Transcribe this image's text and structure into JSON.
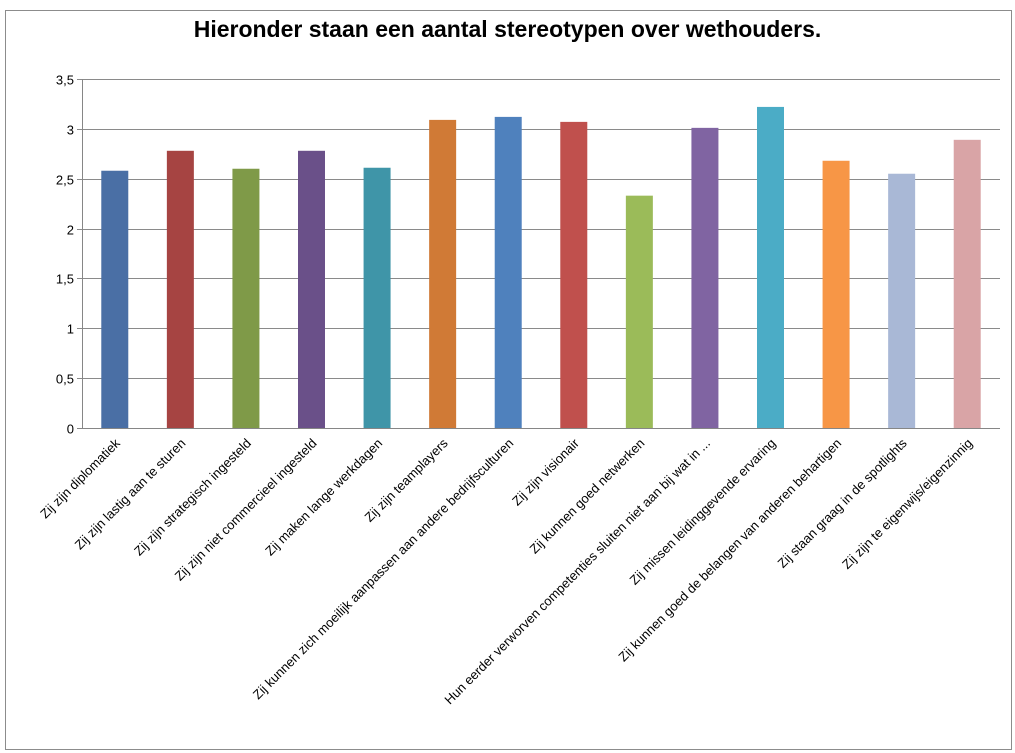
{
  "chart_data": {
    "type": "bar",
    "title": "Hieronder staan een aantal stereotypen over wethouders.",
    "xlabel": "",
    "ylabel": "",
    "ylim": [
      0,
      3.5
    ],
    "yticks": [
      "0",
      "0,5",
      "1",
      "1,5",
      "2",
      "2,5",
      "3",
      "3,5"
    ],
    "grid": true,
    "legend": "none",
    "categories": [
      "Zij zijn diplomatiek",
      "Zij zijn lastig aan te sturen",
      "Zij zijn strategisch ingesteld",
      "Zij zijn niet commercieel ingesteld",
      "Zij maken lange werkdagen",
      "Zij zijn teamplayers",
      "Zij kunnen zich moeilijk aanpassen aan andere bedrijfsculturen",
      "Zij zijn visionair",
      "Zij kunnen goed netwerken",
      "Hun eerder verworven competenties sluiten niet aan bij wat in ...",
      "Zij missen leidinggevende ervaring",
      "Zij kunnen goed de belangen van anderen behartigen",
      "Zij staan graag in de spotlights",
      "Zij zijn te eigenwijs/eigenzinnig"
    ],
    "values": [
      2.58,
      2.78,
      2.6,
      2.78,
      2.61,
      3.09,
      3.12,
      3.07,
      2.33,
      3.01,
      3.22,
      2.68,
      2.55,
      2.89
    ],
    "colors": [
      "#4a6fa5",
      "#a64442",
      "#7f9a48",
      "#6a5089",
      "#3f95a8",
      "#d07a36",
      "#4f81bd",
      "#c0504d",
      "#9bbb59",
      "#8064a2",
      "#4bacc6",
      "#f79646",
      "#a9b8d6",
      "#d9a4a6"
    ]
  }
}
